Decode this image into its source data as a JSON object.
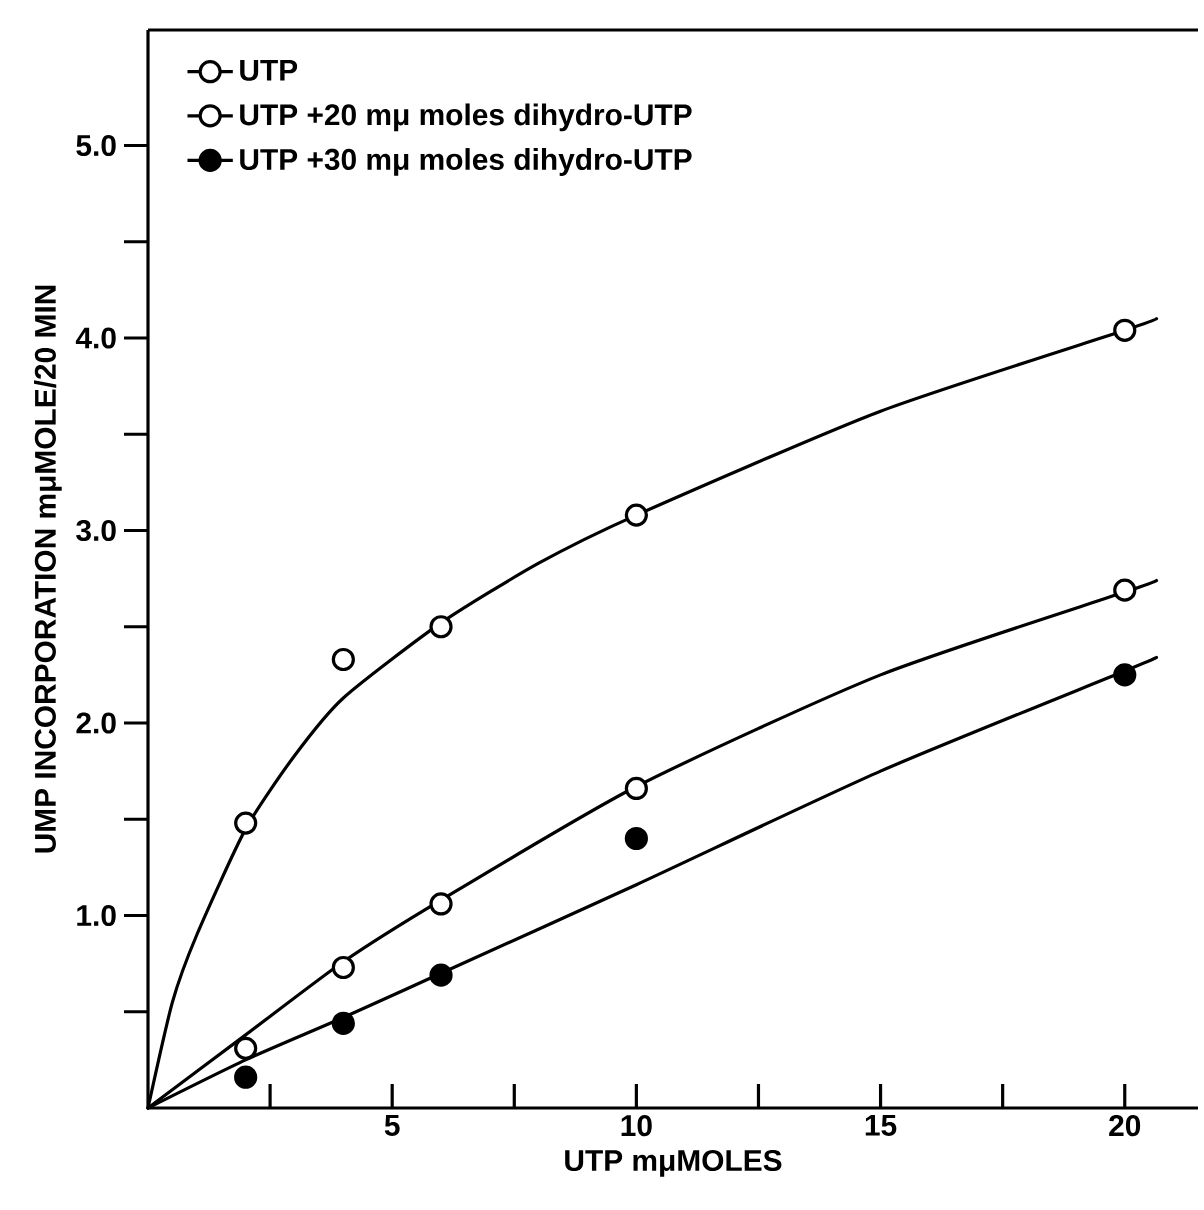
{
  "chart_data": {
    "type": "scatter",
    "xlabel": "UTP   mμMOLES",
    "ylabel": "UMP  INCORPORATION   mμMOLE/20 MIN",
    "xlim": [
      0,
      21.5
    ],
    "ylim": [
      0,
      5.6
    ],
    "xticks": [
      {
        "value": 2.5,
        "label": null
      },
      5,
      {
        "value": 7.5,
        "label": null
      },
      10,
      {
        "value": 12.5,
        "label": null
      },
      15,
      {
        "value": 17.5,
        "label": null
      },
      20
    ],
    "yticks": [
      {
        "value": 0.5,
        "label": null
      },
      {
        "value": 1,
        "label": "1.0"
      },
      {
        "value": 1.5,
        "label": null
      },
      {
        "value": 2,
        "label": "2.0"
      },
      {
        "value": 2.5,
        "label": null
      },
      {
        "value": 3,
        "label": "3.0"
      },
      {
        "value": 3.5,
        "label": null
      },
      {
        "value": 4,
        "label": "4.0"
      },
      {
        "value": 4.5,
        "label": null
      },
      {
        "value": 5,
        "label": "5.0"
      }
    ],
    "legend": "top left",
    "series": [
      {
        "name": "UTP",
        "color": "#ffffff",
        "marker": "circle",
        "x": [
          2,
          4,
          6,
          10,
          20
        ],
        "values": [
          1.48,
          2.33,
          2.5,
          3.08,
          4.04
        ]
      },
      {
        "name": "UTP +20 mμ moles dihydro-UTP",
        "color": "#ffffff",
        "marker": "circle",
        "x": [
          2,
          4,
          6,
          10,
          20
        ],
        "values": [
          0.31,
          0.73,
          1.06,
          1.66,
          2.69
        ]
      },
      {
        "name": "UTP +30 mμ moles dihydro-UTP",
        "color": "#000000",
        "marker": "circle",
        "x": [
          2,
          4,
          6,
          10,
          20
        ],
        "values": [
          0.16,
          0.44,
          0.69,
          1.4,
          2.25
        ]
      },
      {
        "type": "line",
        "marker": "none",
        "color": "#000000",
        "x": [
          0,
          0.5,
          1,
          2,
          3,
          4,
          6,
          8,
          10,
          15,
          20,
          20.65
        ],
        "values": [
          0,
          0.55,
          0.9,
          1.45,
          1.83,
          2.13,
          2.52,
          2.83,
          3.08,
          3.62,
          4.04,
          4.1
        ]
      },
      {
        "type": "line",
        "marker": "none",
        "color": "#000000",
        "x": [
          0,
          2,
          4,
          6,
          10,
          15,
          20,
          20.65
        ],
        "values": [
          0,
          0.38,
          0.76,
          1.08,
          1.67,
          2.25,
          2.68,
          2.74
        ]
      },
      {
        "type": "line",
        "marker": "none",
        "color": "#000000",
        "x": [
          0,
          2,
          4,
          6,
          10,
          15,
          20,
          20.65
        ],
        "values": [
          0,
          0.25,
          0.47,
          0.7,
          1.16,
          1.75,
          2.27,
          2.34
        ]
      }
    ]
  }
}
